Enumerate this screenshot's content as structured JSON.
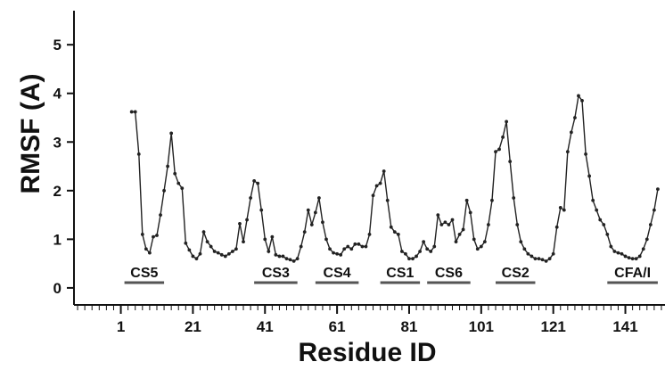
{
  "chart_data": {
    "type": "line",
    "xlabel": "Residue ID",
    "ylabel": "RMSF (A)",
    "xlim": [
      -12,
      152
    ],
    "ylim": [
      -0.35,
      5.7
    ],
    "grid": false,
    "legend": "none",
    "line_color": "#222222",
    "x_ticks": [
      1,
      21,
      41,
      61,
      81,
      101,
      121,
      141
    ],
    "y_ticks": [
      0,
      1,
      2,
      3,
      4,
      5
    ],
    "series": [
      {
        "x": [
          4,
          5,
          6,
          7,
          8,
          9,
          10,
          11,
          12,
          13,
          14,
          15,
          16,
          17,
          18,
          19,
          20,
          21,
          22,
          23,
          24,
          25,
          26,
          27,
          28,
          29,
          30,
          31,
          32,
          33,
          34,
          35,
          36,
          37,
          38,
          39,
          40,
          41,
          42,
          43,
          44,
          45,
          46,
          47,
          48,
          49,
          50,
          51,
          52,
          53,
          54,
          55,
          56,
          57,
          58,
          59,
          60,
          61,
          62,
          63,
          64,
          65,
          66,
          67,
          68,
          69,
          70,
          71,
          72,
          73,
          74,
          75,
          76,
          77,
          78,
          79,
          80,
          81,
          82,
          83,
          84,
          85,
          86,
          87,
          88,
          89,
          90,
          91,
          92,
          93,
          94,
          95,
          96,
          97,
          98,
          99,
          100,
          101,
          102,
          103,
          104,
          105,
          106,
          107,
          108,
          109,
          110,
          111,
          112,
          113,
          114,
          115,
          116,
          117,
          118,
          119,
          120,
          121,
          122,
          123,
          124,
          125,
          126,
          127,
          128,
          129,
          130,
          131,
          132,
          133,
          134,
          135,
          136,
          137,
          138,
          139,
          140,
          141,
          142,
          143,
          144,
          145,
          146,
          147,
          148,
          149,
          150
        ],
        "y": [
          3.62,
          3.62,
          2.75,
          1.1,
          0.8,
          0.72,
          1.05,
          1.08,
          1.5,
          2.0,
          2.5,
          3.18,
          2.35,
          2.15,
          2.05,
          0.92,
          0.78,
          0.65,
          0.6,
          0.7,
          1.15,
          0.95,
          0.85,
          0.75,
          0.72,
          0.68,
          0.65,
          0.7,
          0.75,
          0.8,
          1.32,
          0.95,
          1.4,
          1.85,
          2.2,
          2.15,
          1.6,
          1.0,
          0.75,
          1.05,
          0.68,
          0.65,
          0.65,
          0.6,
          0.58,
          0.55,
          0.6,
          0.85,
          1.15,
          1.6,
          1.3,
          1.55,
          1.85,
          1.35,
          1.0,
          0.8,
          0.72,
          0.7,
          0.68,
          0.8,
          0.85,
          0.8,
          0.9,
          0.9,
          0.85,
          0.85,
          1.1,
          1.9,
          2.1,
          2.15,
          2.4,
          1.8,
          1.25,
          1.15,
          1.1,
          0.75,
          0.7,
          0.6,
          0.6,
          0.65,
          0.75,
          0.95,
          0.8,
          0.75,
          0.85,
          1.5,
          1.3,
          1.35,
          1.3,
          1.4,
          0.95,
          1.1,
          1.2,
          1.8,
          1.55,
          1.0,
          0.8,
          0.85,
          0.95,
          1.3,
          1.8,
          2.8,
          2.85,
          3.1,
          3.42,
          2.6,
          1.85,
          1.3,
          0.95,
          0.8,
          0.7,
          0.65,
          0.6,
          0.6,
          0.58,
          0.55,
          0.6,
          0.7,
          1.25,
          1.65,
          1.6,
          2.8,
          3.2,
          3.5,
          3.95,
          3.85,
          2.75,
          2.3,
          1.8,
          1.6,
          1.4,
          1.3,
          1.1,
          0.85,
          0.75,
          0.72,
          0.7,
          0.65,
          0.62,
          0.6,
          0.6,
          0.65,
          0.8,
          1.0,
          1.3,
          1.6,
          2.03
        ]
      }
    ],
    "annotations": [
      {
        "label": "CS5",
        "x_start": 2,
        "x_end": 13
      },
      {
        "label": "CS3",
        "x_start": 38,
        "x_end": 50
      },
      {
        "label": "CS4",
        "x_start": 55,
        "x_end": 67
      },
      {
        "label": "CS1",
        "x_start": 73,
        "x_end": 84
      },
      {
        "label": "CS6",
        "x_start": 86,
        "x_end": 98
      },
      {
        "label": "CS2",
        "x_start": 105,
        "x_end": 116
      },
      {
        "label": "CFA/I",
        "x_start": 136,
        "x_end": 150
      }
    ]
  }
}
